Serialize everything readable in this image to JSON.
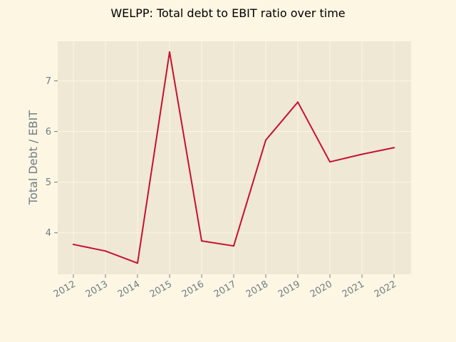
{
  "chart_data": {
    "type": "line",
    "title": "WELPP: Total debt to EBIT ratio over time",
    "xlabel": "",
    "ylabel": "Total Debt / EBIT",
    "x": [
      "2012",
      "2013",
      "2014",
      "2015",
      "2016",
      "2017",
      "2018",
      "2019",
      "2020",
      "2021",
      "2022"
    ],
    "series": [
      {
        "values": [
          3.77,
          3.64,
          3.4,
          7.57,
          3.84,
          3.74,
          5.83,
          6.58,
          5.4,
          5.55,
          5.68
        ]
      }
    ],
    "yticks": [
      4,
      5,
      6,
      7
    ],
    "ylim": [
      3.18,
      7.78
    ],
    "grid": true,
    "colors": {
      "background": "#fdf6e3",
      "plot_background": "#eee8d5",
      "grid": "#fdf6e3",
      "line": "#c8102e",
      "tick_text": "#6f7d84"
    }
  }
}
